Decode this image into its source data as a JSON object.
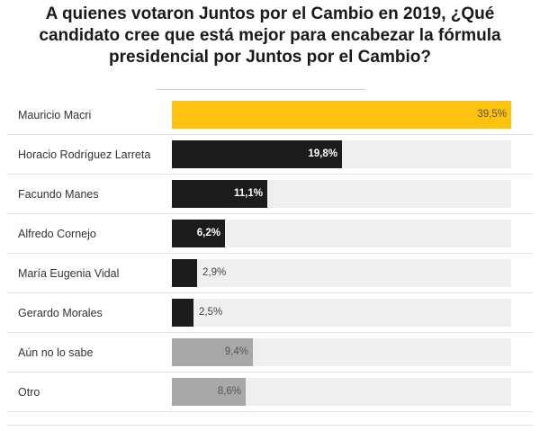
{
  "title": "A quienes votaron Juntos por el Cambio en 2019, ¿Qué candidato cree que está mejor para encabezar la fórmula presidencial por Juntos por el Cambio?",
  "colors": {
    "highlight": "#ffc20e",
    "candidate": "#1c1c1c",
    "other": "#a8a8a8",
    "track": "#efefef"
  },
  "chart_data": {
    "type": "bar",
    "orientation": "horizontal",
    "title": "A quienes votaron Juntos por el Cambio en 2019, ¿Qué candidato cree que está mejor para encabezar la fórmula presidencial por Juntos por el Cambio?",
    "categories": [
      "Mauricio Macri",
      "Horacio Rodríguez Larreta",
      "Facundo Manes",
      "Alfredo Cornejo",
      "María Eugenia Vidal",
      "Gerardo Morales",
      "Aún no lo sabe",
      "Otro"
    ],
    "values": [
      39.5,
      19.8,
      11.1,
      6.2,
      2.9,
      2.5,
      9.4,
      8.6
    ],
    "labels": [
      "39,5%",
      "19,8%",
      "11,1%",
      "6,2%",
      "2,9%",
      "2,5%",
      "9,4%",
      "8,6%"
    ],
    "color_groups": [
      "highlight",
      "candidate",
      "candidate",
      "candidate",
      "candidate",
      "candidate",
      "other",
      "other"
    ],
    "xlim": [
      0,
      39.5
    ],
    "grid": false,
    "legend": "none"
  }
}
